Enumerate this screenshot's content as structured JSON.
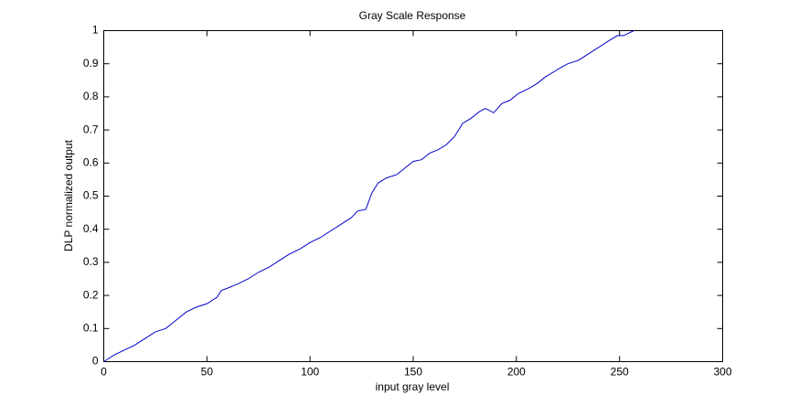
{
  "chart_data": {
    "type": "line",
    "title": "Gray Scale Response",
    "x_label": "input gray level",
    "y_label": "DLP normalized output",
    "x": [
      0,
      5,
      10,
      15,
      20,
      25,
      30,
      35,
      40,
      45,
      50,
      55,
      57,
      60,
      65,
      70,
      75,
      80,
      85,
      90,
      95,
      100,
      105,
      110,
      115,
      120,
      123,
      127,
      130,
      133,
      137,
      142,
      146,
      150,
      154,
      158,
      162,
      166,
      170,
      174,
      178,
      182,
      185,
      189,
      193,
      197,
      201,
      206,
      210,
      214,
      218,
      222,
      225,
      230,
      235,
      240,
      245,
      249,
      252,
      257
    ],
    "values": [
      0,
      0.02,
      0.035,
      0.05,
      0.07,
      0.09,
      0.1,
      0.125,
      0.15,
      0.165,
      0.175,
      0.195,
      0.215,
      0.222,
      0.235,
      0.25,
      0.27,
      0.285,
      0.305,
      0.325,
      0.34,
      0.36,
      0.375,
      0.395,
      0.415,
      0.435,
      0.455,
      0.46,
      0.51,
      0.54,
      0.555,
      0.565,
      0.585,
      0.605,
      0.61,
      0.63,
      0.64,
      0.655,
      0.68,
      0.72,
      0.735,
      0.755,
      0.765,
      0.752,
      0.78,
      0.79,
      0.81,
      0.825,
      0.84,
      0.86,
      0.875,
      0.89,
      0.9,
      0.91,
      0.93,
      0.95,
      0.97,
      0.985,
      0.985,
      1.0
    ],
    "color": "#0000cc",
    "xlim": [
      0,
      300
    ],
    "xticks": [
      0,
      50,
      100,
      150,
      200,
      250,
      300
    ],
    "ylim": [
      0,
      1
    ],
    "yticks": [
      0,
      0.1,
      0.2,
      0.3,
      0.4,
      0.5,
      0.6,
      0.7,
      0.8,
      0.9,
      1
    ],
    "grid": false
  }
}
